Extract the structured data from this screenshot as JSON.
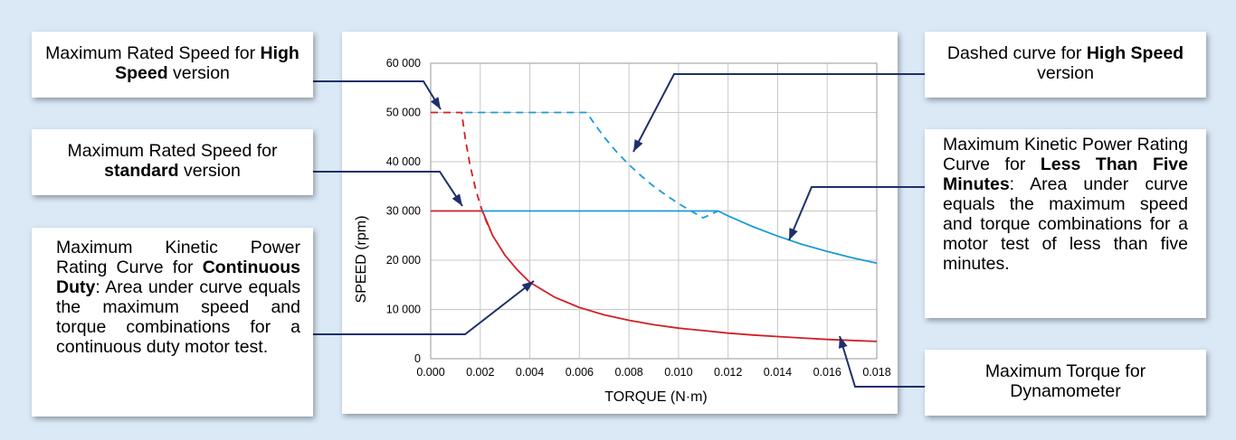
{
  "colors": {
    "background": "#dbe9f7",
    "red": "#d11f26",
    "blue": "#1d9ad9",
    "navy": "#1f2f6b",
    "grid": "#c8c8c8"
  },
  "callouts": {
    "max_high": {
      "pre": "Maximum Rated Speed for ",
      "bold": "High Speed",
      "post": " version"
    },
    "max_std": {
      "pre": "Maximum Rated Speed for ",
      "bold": "standard",
      "post": " version"
    },
    "continuous": {
      "pre": "Maximum Kinetic Power Rating Curve for ",
      "bold": "Contin­uous Duty",
      "post": ": Area under curve equals the maxi­mum speed and torque combinations for a contin­uous duty motor test."
    },
    "dashed_high": {
      "pre": "Dashed curve for ",
      "bold": "High Speed",
      "post": " version"
    },
    "five_min": {
      "pre": "Maximum Kinetic Power Rating Curve for ",
      "bold": "Less Than Five Minutes",
      "post": ": Area under curve equals the maximum speed and torque combinations for a motor test of less than five minutes."
    },
    "max_torque": {
      "text": "Maximum Torque for Dynamometer"
    }
  },
  "chart_data": {
    "type": "line",
    "xlabel": "TORQUE (N·m)",
    "ylabel": "SPEED (rpm)",
    "xlim": [
      0,
      0.018
    ],
    "ylim": [
      0,
      60000
    ],
    "x_ticks": [
      "0.000",
      "0.002",
      "0.004",
      "0.006",
      "0.008",
      "0.010",
      "0.012",
      "0.014",
      "0.016",
      "0.018"
    ],
    "y_ticks": [
      "0",
      "10 000",
      "20 000",
      "30 000",
      "40 000",
      "50 000",
      "60 000"
    ],
    "grid": true,
    "series": [
      {
        "style": "solid",
        "color": "#d11f26",
        "x": [
          0,
          0.00209,
          0.0025,
          0.003,
          0.0035,
          0.004,
          0.005,
          0.006,
          0.007,
          0.008,
          0.009,
          0.01,
          0.011,
          0.012,
          0.013,
          0.014,
          0.015,
          0.016,
          0.017,
          0.018
        ],
        "y": [
          30000,
          30000,
          25000,
          21000,
          18000,
          15500,
          12500,
          10400,
          8900,
          7800,
          6900,
          6200,
          5700,
          5200,
          4800,
          4500,
          4200,
          3900,
          3700,
          3500
        ]
      },
      {
        "style": "dashed",
        "color": "#d11f26",
        "x": [
          0,
          0.00125,
          0.0014,
          0.0016,
          0.0018,
          0.002,
          0.0022,
          0.0024
        ],
        "y": [
          50000,
          50000,
          44600,
          39000,
          34700,
          31200,
          28400,
          26000
        ]
      },
      {
        "style": "solid",
        "color": "#1d9ad9",
        "x": [
          0.00209,
          0.0116,
          0.012,
          0.013,
          0.014,
          0.015,
          0.016,
          0.017,
          0.018
        ],
        "y": [
          30000,
          30000,
          29000,
          26800,
          24900,
          23200,
          21800,
          20500,
          19400
        ]
      },
      {
        "style": "dashed",
        "color": "#1d9ad9",
        "x": [
          0.0014,
          0.0063,
          0.0065,
          0.007,
          0.0075,
          0.008,
          0.0085,
          0.009,
          0.0095,
          0.01,
          0.0105,
          0.011,
          0.0116
        ],
        "y": [
          50000,
          50000,
          48500,
          45000,
          42000,
          39400,
          37100,
          35000,
          33200,
          31500,
          30000,
          28600,
          30000
        ]
      }
    ]
  }
}
